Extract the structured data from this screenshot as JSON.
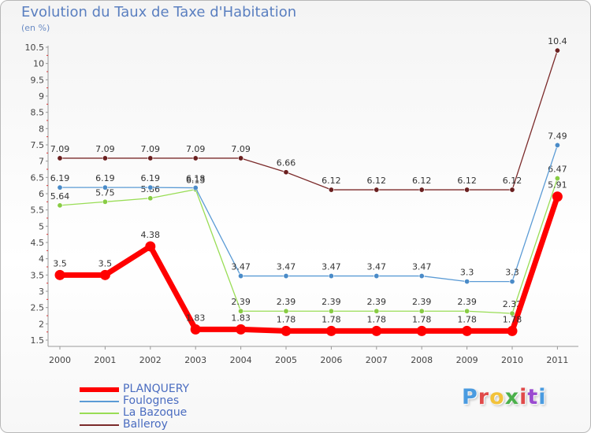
{
  "header": {
    "title": "Evolution du Taux de Taxe d'Habitation",
    "subtitle": "(en %)"
  },
  "logo": {
    "text": "Proxiti",
    "colors": [
      "#4a9be0",
      "#e04a4a",
      "#f2c23a",
      "#4bb04b",
      "#e04a4a",
      "#9a4ad0",
      "#4a9be0"
    ]
  },
  "chart_data": {
    "type": "line",
    "x": [
      2000,
      2001,
      2002,
      2003,
      2004,
      2005,
      2006,
      2007,
      2008,
      2009,
      2010,
      2011
    ],
    "ylim": [
      1.5,
      10.5
    ],
    "y_ticks": [
      "1.5",
      "2",
      "2.5",
      "3",
      "3.5",
      "4",
      "4.5",
      "5",
      "5.5",
      "6",
      "6.5",
      "7",
      "7.5",
      "8",
      "8.5",
      "9",
      "9.5",
      "10",
      "10.5"
    ],
    "grid": false,
    "legend_position": "bottom-left",
    "series": [
      {
        "name": "Balleroy",
        "color": "#7b2a2a",
        "values": [
          7.09,
          7.09,
          7.09,
          7.09,
          7.09,
          6.66,
          6.12,
          6.12,
          6.12,
          6.12,
          6.12,
          10.4
        ],
        "labels": [
          "7.09",
          "7.09",
          "7.09",
          "7.09",
          "7.09",
          "6.66",
          "6.12",
          "6.12",
          "6.12",
          "6.12",
          "6.12",
          "10.4"
        ]
      },
      {
        "name": "La Bazoque",
        "color": "#99dd55",
        "values": [
          5.64,
          5.75,
          5.86,
          6.13,
          2.39,
          2.39,
          2.39,
          2.39,
          2.39,
          2.39,
          2.32,
          6.47
        ],
        "labels": [
          "5.64",
          "5.75",
          "5.86",
          "6.13",
          "2.39",
          "2.39",
          "2.39",
          "2.39",
          "2.39",
          "2.39",
          "2.32",
          "6.47"
        ]
      },
      {
        "name": "Foulognes",
        "color": "#5b9bd5",
        "values": [
          6.19,
          6.19,
          6.19,
          6.18,
          3.47,
          3.47,
          3.47,
          3.47,
          3.47,
          3.3,
          3.3,
          7.49
        ],
        "labels": [
          "6.19",
          "6.19",
          "6.19",
          "6.18",
          "3.47",
          "3.47",
          "3.47",
          "3.47",
          "3.47",
          "3.3",
          "3.3",
          "7.49"
        ]
      },
      {
        "name": "PLANQUERY",
        "color": "#ff0000",
        "values": [
          3.5,
          3.5,
          4.38,
          1.83,
          1.83,
          1.78,
          1.78,
          1.78,
          1.78,
          1.78,
          1.78,
          5.91
        ],
        "labels": [
          "3.5",
          "3.5",
          "4.38",
          "1.83",
          "1.83",
          "1.78",
          "1.78",
          "1.78",
          "1.78",
          "1.78",
          "1.78",
          "5.91"
        ]
      }
    ]
  },
  "legend": [
    {
      "label": "PLANQUERY",
      "color": "#ff0000"
    },
    {
      "label": "Foulognes",
      "color": "#5b9bd5"
    },
    {
      "label": "La Bazoque",
      "color": "#99dd55"
    },
    {
      "label": "Balleroy",
      "color": "#7b2a2a"
    }
  ]
}
